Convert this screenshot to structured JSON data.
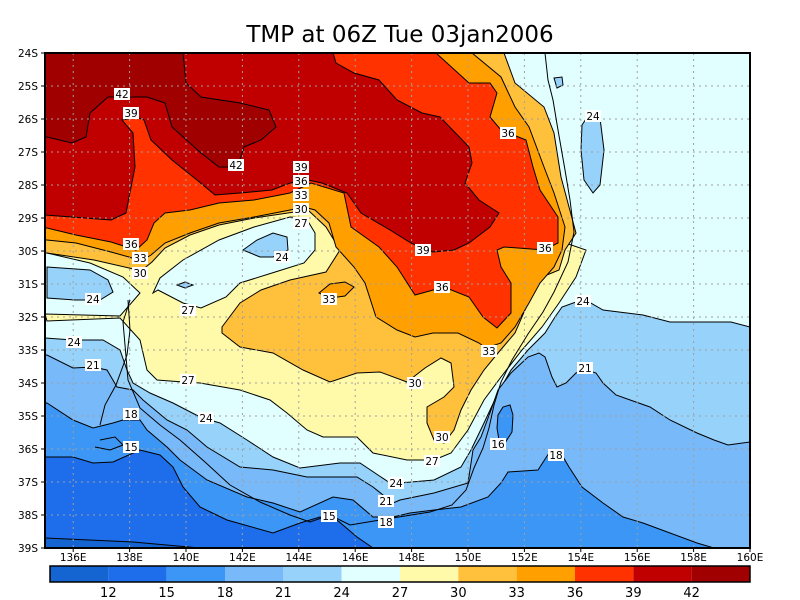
{
  "title": "TMP at 06Z Tue 03jan2006",
  "map": {
    "variable": "TMP",
    "lat_labels": [
      "24S",
      "25S",
      "26S",
      "27S",
      "28S",
      "29S",
      "30S",
      "31S",
      "32S",
      "33S",
      "34S",
      "35S",
      "36S",
      "37S",
      "38S",
      "39S"
    ],
    "lon_labels": [
      "136E",
      "138E",
      "140E",
      "142E",
      "144E",
      "146E",
      "148E",
      "150E",
      "152E",
      "154E",
      "156E",
      "158E",
      "160E"
    ],
    "contour_labels": [
      "42",
      "39",
      "42",
      "39",
      "36",
      "33",
      "30",
      "27",
      "24",
      "36",
      "24",
      "36",
      "33",
      "30",
      "39",
      "36",
      "24",
      "27",
      "33",
      "36",
      "24",
      "33",
      "24",
      "21",
      "21",
      "30",
      "27",
      "18",
      "24",
      "30",
      "16",
      "15",
      "27",
      "18",
      "24",
      "21",
      "15",
      "18"
    ]
  },
  "colorbar": {
    "levels": [
      "12",
      "15",
      "18",
      "21",
      "24",
      "27",
      "30",
      "33",
      "36",
      "39",
      "42"
    ],
    "colors": [
      "#1464d2",
      "#1e6eeb",
      "#3c96f5",
      "#78b9fa",
      "#96d2fa",
      "#e1ffff",
      "#fffaaa",
      "#ffc03c",
      "#ffa000",
      "#ff3200",
      "#c00000",
      "#a00000"
    ]
  }
}
